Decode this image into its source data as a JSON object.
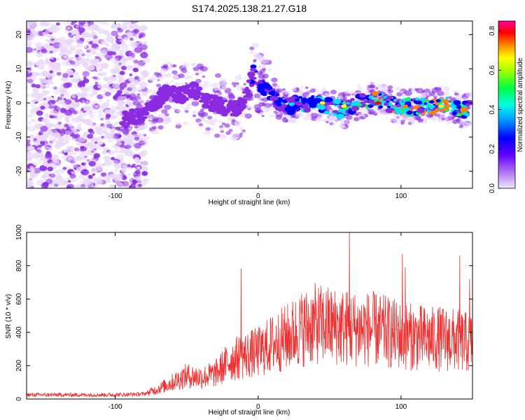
{
  "chart_data": [
    {
      "type": "heatmap",
      "title": "S174.2025.138.21.27.G18",
      "xlabel": "Height of straight line (km)",
      "ylabel": "Frequency (Hz)",
      "xlim": [
        -162,
        150
      ],
      "ylim": [
        -25,
        24
      ],
      "xticks": [
        -100,
        0,
        100
      ],
      "yticks": [
        -20,
        -10,
        0,
        10,
        20
      ],
      "colorbar": {
        "label": "Normalized spectral amplitude",
        "range": [
          0,
          0.85
        ],
        "ticks": [
          0.0,
          0.2,
          0.4,
          0.6,
          0.8
        ],
        "colormap": [
          "#e8d8f8",
          "#8a2be2",
          "#0000ff",
          "#00e0ff",
          "#00ff60",
          "#ffff00",
          "#ff8000",
          "#ff0000",
          "#ff00a0"
        ]
      },
      "ridge": {
        "x": [
          -95,
          -85,
          -75,
          -65,
          -55,
          -45,
          -35,
          -25,
          -15,
          -8,
          -3,
          0,
          5,
          10,
          15,
          20,
          30,
          40,
          50,
          60,
          70,
          80,
          90,
          100,
          110,
          120,
          130,
          140,
          148
        ],
        "y": [
          -5,
          -4,
          -2,
          3,
          2,
          4,
          0,
          -1,
          -2,
          2,
          9,
          6,
          4,
          3,
          0,
          -1,
          0,
          0,
          -1,
          -2,
          0,
          1,
          0,
          -1,
          -1,
          -1,
          0,
          -2,
          -2
        ]
      }
    },
    {
      "type": "line",
      "title": "",
      "xlabel": "Height of straight line (km)",
      "ylabel": "SNR (10 * v/v)",
      "xlim": [
        -162,
        150
      ],
      "ylim": [
        0,
        1000
      ],
      "xticks": [
        -100,
        0,
        100
      ],
      "yticks": [
        0,
        200,
        400,
        600,
        800,
        1000
      ],
      "line_color": "#ee3030",
      "envelope": {
        "x": [
          -162,
          -100,
          -80,
          -70,
          -60,
          -50,
          -40,
          -30,
          -20,
          -10,
          0,
          10,
          20,
          30,
          40,
          50,
          60,
          70,
          80,
          90,
          100,
          110,
          120,
          130,
          140,
          150
        ],
        "y": [
          25,
          25,
          30,
          60,
          100,
          140,
          130,
          150,
          230,
          260,
          280,
          330,
          370,
          420,
          450,
          440,
          430,
          420,
          420,
          400,
          380,
          370,
          360,
          360,
          350,
          330
        ]
      },
      "spikes": [
        {
          "x": -12,
          "y": 785
        },
        {
          "x": 64,
          "y": 1000
        },
        {
          "x": 101,
          "y": 870
        },
        {
          "x": 103,
          "y": 790
        },
        {
          "x": 141,
          "y": 860
        },
        {
          "x": 148,
          "y": 720
        }
      ]
    }
  ]
}
